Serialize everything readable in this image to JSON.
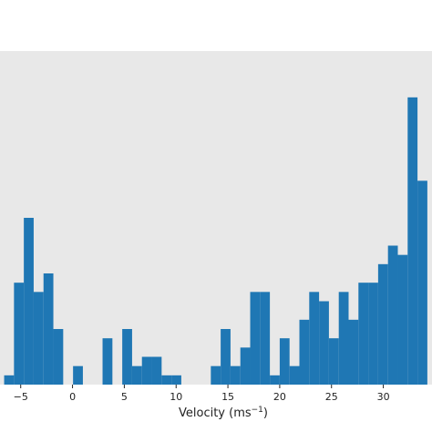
{
  "chart_data": {
    "type": "bar",
    "subtype": "histogram",
    "title": "",
    "xlabel": "Velocity (ms",
    "xlabel_superscript": "−1",
    "xlabel_close": ")",
    "ylabel": "",
    "xlim": [
      -7.0,
      34.7
    ],
    "ylim": [
      0,
      36
    ],
    "bin_width": 0.95,
    "xticks": [
      -5,
      0,
      5,
      10,
      15,
      20,
      25,
      30
    ],
    "xtick_labels": [
      "−5",
      "0",
      "5",
      "10",
      "15",
      "20",
      "25",
      "30"
    ],
    "grid": false,
    "legend": "none",
    "colors": {
      "bar": "#1f77b4",
      "plot_background": "#e8e8e8",
      "page_background": "#ffffff"
    },
    "bins": [
      {
        "x0": -6.6,
        "value": 1
      },
      {
        "x0": -5.65,
        "value": 11
      },
      {
        "x0": -4.7,
        "value": 18
      },
      {
        "x0": -3.75,
        "value": 10
      },
      {
        "x0": -2.8,
        "value": 12
      },
      {
        "x0": -1.85,
        "value": 6
      },
      {
        "x0": -0.9,
        "value": 0
      },
      {
        "x0": 0.05,
        "value": 2
      },
      {
        "x0": 1.0,
        "value": 0
      },
      {
        "x0": 1.95,
        "value": 0
      },
      {
        "x0": 2.9,
        "value": 5
      },
      {
        "x0": 3.85,
        "value": 0
      },
      {
        "x0": 4.8,
        "value": 6
      },
      {
        "x0": 5.75,
        "value": 2
      },
      {
        "x0": 6.7,
        "value": 3
      },
      {
        "x0": 7.65,
        "value": 3
      },
      {
        "x0": 8.6,
        "value": 1
      },
      {
        "x0": 9.55,
        "value": 1
      },
      {
        "x0": 10.5,
        "value": 0
      },
      {
        "x0": 11.45,
        "value": 0
      },
      {
        "x0": 12.4,
        "value": 0
      },
      {
        "x0": 13.35,
        "value": 2
      },
      {
        "x0": 14.3,
        "value": 6
      },
      {
        "x0": 15.25,
        "value": 2
      },
      {
        "x0": 16.2,
        "value": 4
      },
      {
        "x0": 17.15,
        "value": 10
      },
      {
        "x0": 18.1,
        "value": 10
      },
      {
        "x0": 19.05,
        "value": 1
      },
      {
        "x0": 20.0,
        "value": 5
      },
      {
        "x0": 20.95,
        "value": 2
      },
      {
        "x0": 21.9,
        "value": 7
      },
      {
        "x0": 22.85,
        "value": 10
      },
      {
        "x0": 23.8,
        "value": 9
      },
      {
        "x0": 24.75,
        "value": 5
      },
      {
        "x0": 25.7,
        "value": 10
      },
      {
        "x0": 26.65,
        "value": 7
      },
      {
        "x0": 27.6,
        "value": 11
      },
      {
        "x0": 28.55,
        "value": 11
      },
      {
        "x0": 29.5,
        "value": 13
      },
      {
        "x0": 30.45,
        "value": 15
      },
      {
        "x0": 31.4,
        "value": 14
      },
      {
        "x0": 32.35,
        "value": 31
      },
      {
        "x0": 33.3,
        "value": 22
      }
    ]
  }
}
